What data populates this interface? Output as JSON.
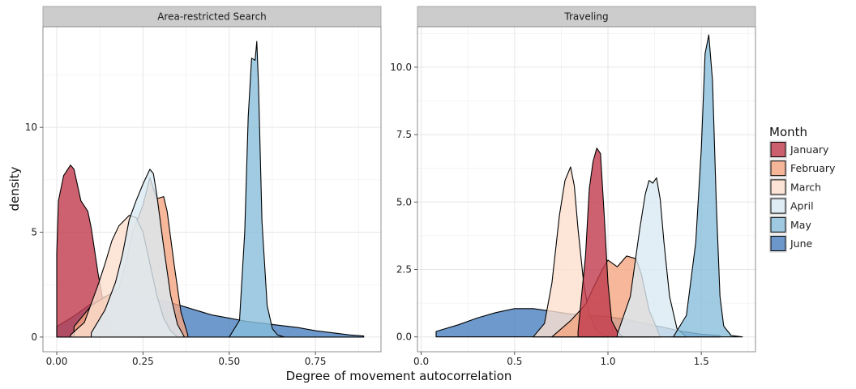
{
  "chart_data": {
    "type": "area",
    "subtype": "faceted-density",
    "xlabel": "Degree of movement autocorrelation",
    "ylabel": "density",
    "grid": true,
    "legend": {
      "title": "Month",
      "placement": "right",
      "entries": [
        {
          "name": "January",
          "color": "#c0394b"
        },
        {
          "name": "February",
          "color": "#f4a582"
        },
        {
          "name": "March",
          "color": "#fde0ce"
        },
        {
          "name": "April",
          "color": "#dbeaf2"
        },
        {
          "name": "May",
          "color": "#88bedc"
        },
        {
          "name": "June",
          "color": "#4a80bf"
        }
      ]
    },
    "facets": [
      {
        "title": "Area-restricted Search",
        "xlim": [
          -0.04,
          0.94
        ],
        "ylim": [
          -0.7,
          14.8
        ],
        "xticks": [
          0.0,
          0.25,
          0.5,
          0.75
        ],
        "xtick_labels": [
          "0.00",
          "0.25",
          "0.50",
          "0.75"
        ],
        "yticks": [
          0,
          5,
          10
        ],
        "ytick_labels": [
          "0",
          "5",
          "10"
        ],
        "series": [
          {
            "name": "June",
            "x": [
              0.0,
              0.05,
              0.1,
              0.15,
              0.2,
              0.25,
              0.3,
              0.35,
              0.4,
              0.45,
              0.5,
              0.55,
              0.6,
              0.65,
              0.7,
              0.75,
              0.8,
              0.85,
              0.89
            ],
            "y": [
              0.5,
              1.0,
              1.6,
              2.0,
              2.1,
              1.95,
              1.75,
              1.55,
              1.3,
              1.05,
              0.9,
              0.75,
              0.65,
              0.55,
              0.45,
              0.3,
              0.2,
              0.1,
              0.05
            ]
          },
          {
            "name": "May",
            "x": [
              0.5,
              0.53,
              0.545,
              0.555,
              0.565,
              0.575,
              0.58,
              0.585,
              0.595,
              0.61,
              0.625,
              0.64,
              0.66
            ],
            "y": [
              0.0,
              0.8,
              5.0,
              10.5,
              13.3,
              13.2,
              14.1,
              12.0,
              5.5,
              1.5,
              0.4,
              0.1,
              0.0
            ]
          },
          {
            "name": "January",
            "x": [
              0.0,
              0.005,
              0.02,
              0.04,
              0.05,
              0.07,
              0.09,
              0.1,
              0.12,
              0.14,
              0.16,
              0.18,
              0.2
            ],
            "y": [
              4.0,
              6.5,
              7.7,
              8.2,
              8.0,
              6.5,
              6.0,
              5.2,
              3.0,
              1.2,
              0.4,
              0.1,
              0.0
            ]
          },
          {
            "name": "February",
            "x": [
              0.05,
              0.1,
              0.15,
              0.18,
              0.2,
              0.22,
              0.25,
              0.27,
              0.29,
              0.31,
              0.32,
              0.34,
              0.36,
              0.38
            ],
            "y": [
              0.5,
              1.5,
              2.0,
              2.3,
              3.5,
              5.0,
              6.3,
              7.6,
              6.6,
              6.7,
              6.0,
              3.5,
              1.2,
              0.1
            ]
          },
          {
            "name": "March",
            "x": [
              0.04,
              0.08,
              0.12,
              0.14,
              0.16,
              0.18,
              0.21,
              0.23,
              0.25,
              0.27,
              0.29,
              0.31,
              0.33,
              0.35
            ],
            "y": [
              0.1,
              0.7,
              2.5,
              3.5,
              4.6,
              5.3,
              5.8,
              5.7,
              5.0,
              3.5,
              2.0,
              0.9,
              0.3,
              0.0
            ]
          },
          {
            "name": "April",
            "x": [
              0.1,
              0.14,
              0.17,
              0.19,
              0.21,
              0.23,
              0.25,
              0.27,
              0.28,
              0.29,
              0.31,
              0.33,
              0.35,
              0.37
            ],
            "y": [
              0.2,
              1.3,
              2.6,
              3.9,
              5.6,
              6.5,
              7.3,
              8.0,
              7.8,
              6.8,
              4.3,
              2.0,
              0.6,
              0.0
            ]
          }
        ]
      },
      {
        "title": "Traveling",
        "xlim": [
          -0.02,
          1.79
        ],
        "ylim": [
          -0.55,
          11.5
        ],
        "xticks": [
          0.0,
          0.5,
          1.0,
          1.5
        ],
        "xtick_labels": [
          "0.0",
          "0.5",
          "1.0",
          "1.5"
        ],
        "yticks": [
          0,
          2.5,
          5,
          7.5,
          10
        ],
        "ytick_labels": [
          "0.0",
          "2.5",
          "5.0",
          "7.5",
          "10.0"
        ],
        "series": [
          {
            "name": "June",
            "x": [
              0.08,
              0.2,
              0.3,
              0.4,
              0.5,
              0.6,
              0.7,
              0.8,
              0.9,
              1.0,
              1.1,
              1.2,
              1.3,
              1.4,
              1.5,
              1.6
            ],
            "y": [
              0.2,
              0.45,
              0.7,
              0.9,
              1.05,
              1.05,
              0.95,
              0.85,
              0.8,
              0.75,
              0.65,
              0.5,
              0.35,
              0.2,
              0.1,
              0.05
            ]
          },
          {
            "name": "March",
            "x": [
              0.6,
              0.66,
              0.7,
              0.74,
              0.77,
              0.8,
              0.82,
              0.84,
              0.87,
              0.9,
              0.94,
              1.0
            ],
            "y": [
              0.0,
              0.5,
              2.0,
              4.5,
              5.8,
              6.3,
              5.6,
              4.0,
              2.0,
              0.8,
              0.2,
              0.0
            ]
          },
          {
            "name": "February",
            "x": [
              0.7,
              0.8,
              0.88,
              0.92,
              0.97,
              1.0,
              1.05,
              1.1,
              1.15,
              1.18,
              1.22,
              1.28
            ],
            "y": [
              0.0,
              0.6,
              1.2,
              1.8,
              2.5,
              2.85,
              2.6,
              3.0,
              2.9,
              2.3,
              1.0,
              0.0
            ]
          },
          {
            "name": "January",
            "x": [
              0.84,
              0.88,
              0.9,
              0.92,
              0.94,
              0.96,
              0.98,
              1.0,
              1.02,
              1.05,
              1.08
            ],
            "y": [
              0.2,
              3.0,
              5.5,
              6.5,
              7.0,
              6.8,
              4.5,
              2.0,
              0.6,
              0.2,
              0.0
            ]
          },
          {
            "name": "April",
            "x": [
              1.05,
              1.12,
              1.17,
              1.2,
              1.22,
              1.24,
              1.26,
              1.28,
              1.3,
              1.33,
              1.37,
              1.42
            ],
            "y": [
              0.1,
              1.5,
              4.0,
              5.3,
              5.8,
              5.7,
              5.9,
              5.1,
              3.5,
              1.5,
              0.3,
              0.0
            ]
          },
          {
            "name": "May",
            "x": [
              1.35,
              1.42,
              1.47,
              1.5,
              1.52,
              1.54,
              1.56,
              1.58,
              1.6,
              1.62,
              1.66,
              1.72
            ],
            "y": [
              0.0,
              0.8,
              3.5,
              7.0,
              10.5,
              11.2,
              9.5,
              5.0,
              1.5,
              0.4,
              0.05,
              0.0
            ]
          }
        ]
      }
    ]
  }
}
